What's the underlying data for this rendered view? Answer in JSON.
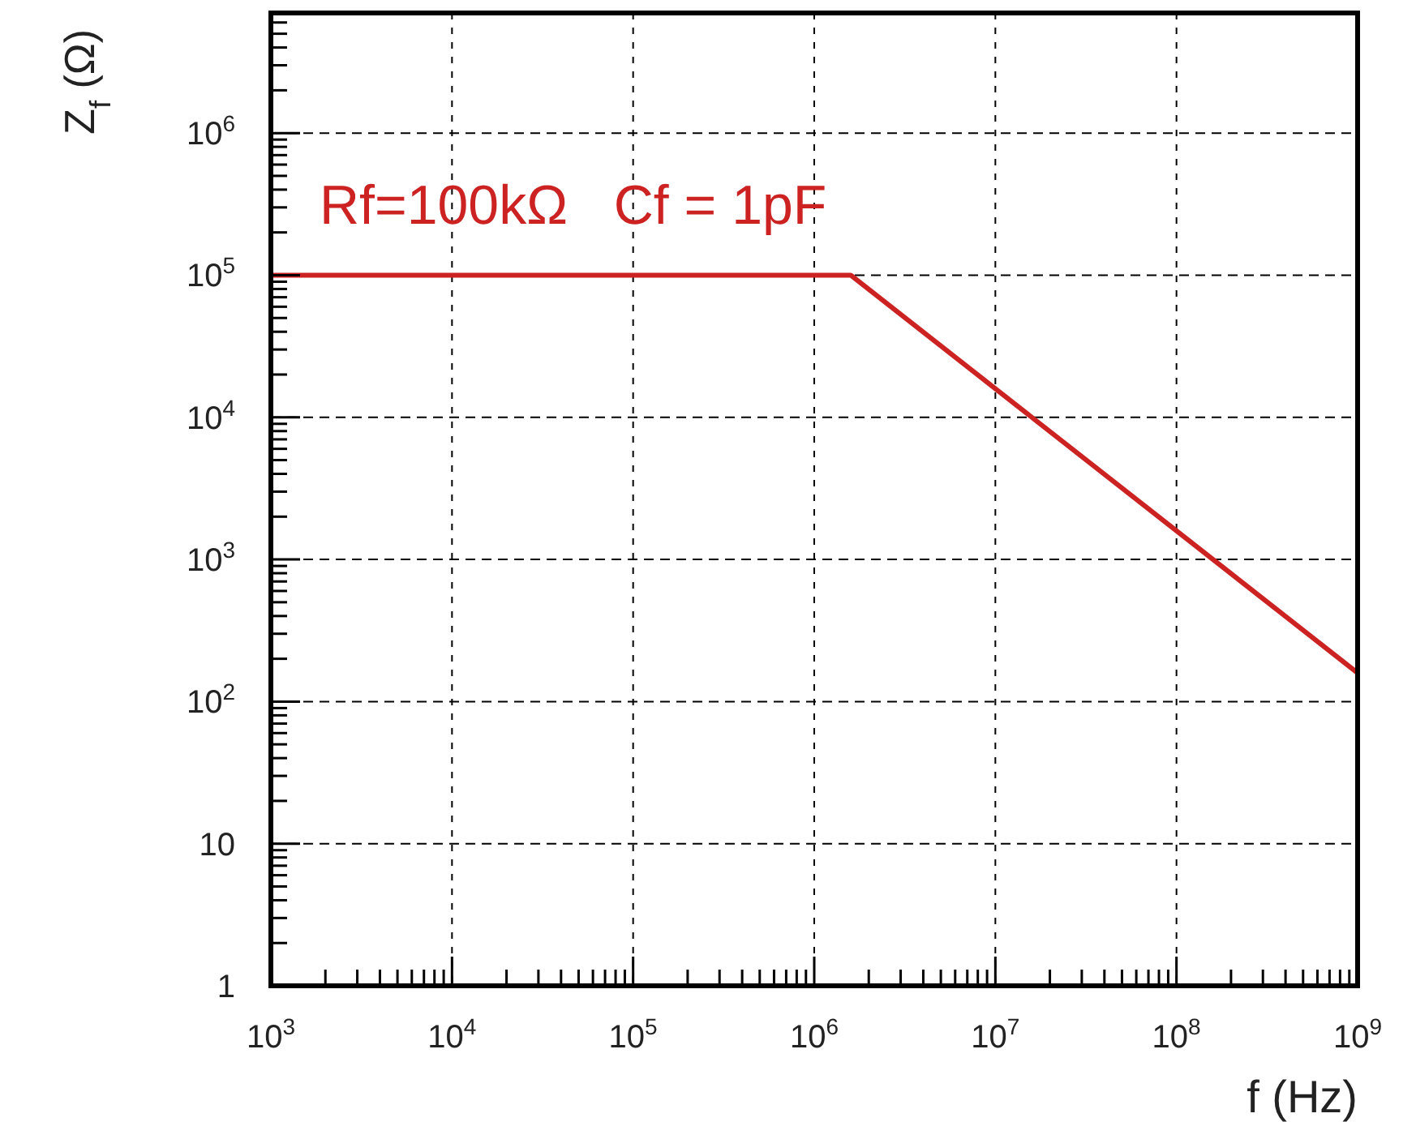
{
  "chart_data": {
    "type": "line",
    "xlabel": "f (Hz)",
    "ylabel": "Z$_{f}$ (Ω)",
    "annotations": [
      "Rf=100kΩ   Cf = 1pF"
    ],
    "log": "xy",
    "grid": true,
    "marker": "none",
    "line_style": "solid",
    "xlim": [
      1000,
      1000000000
    ],
    "ylim": [
      1,
      7000000
    ],
    "xticks": [
      {
        "value": 1000,
        "label": "10$^{3}$"
      },
      {
        "value": 10000,
        "label": "10$^{4}$"
      },
      {
        "value": 100000,
        "label": "10$^{5}$"
      },
      {
        "value": 1000000,
        "label": "10$^{6}$"
      },
      {
        "value": 10000000,
        "label": "10$^{7}$"
      },
      {
        "value": 100000000,
        "label": "10$^{8}$"
      },
      {
        "value": 1000000000,
        "label": "10$^{9}$"
      },
      {
        "value": 2000,
        "label": null
      },
      {
        "value": 3000,
        "label": null
      },
      {
        "value": 4000,
        "label": null
      },
      {
        "value": 5000,
        "label": null
      },
      {
        "value": 6000,
        "label": null
      },
      {
        "value": 7000,
        "label": null
      },
      {
        "value": 8000,
        "label": null
      },
      {
        "value": 9000,
        "label": null
      },
      {
        "value": 20000,
        "label": null
      },
      {
        "value": 30000,
        "label": null
      },
      {
        "value": 40000,
        "label": null
      },
      {
        "value": 50000,
        "label": null
      },
      {
        "value": 60000,
        "label": null
      },
      {
        "value": 70000,
        "label": null
      },
      {
        "value": 80000,
        "label": null
      },
      {
        "value": 90000,
        "label": null
      },
      {
        "value": 200000,
        "label": null
      },
      {
        "value": 300000,
        "label": null
      },
      {
        "value": 400000,
        "label": null
      },
      {
        "value": 500000,
        "label": null
      },
      {
        "value": 600000,
        "label": null
      },
      {
        "value": 700000,
        "label": null
      },
      {
        "value": 800000,
        "label": null
      },
      {
        "value": 900000,
        "label": null
      },
      {
        "value": 2000000,
        "label": null
      },
      {
        "value": 3000000,
        "label": null
      },
      {
        "value": 4000000,
        "label": null
      },
      {
        "value": 5000000,
        "label": null
      },
      {
        "value": 6000000,
        "label": null
      },
      {
        "value": 7000000,
        "label": null
      },
      {
        "value": 8000000,
        "label": null
      },
      {
        "value": 9000000,
        "label": null
      },
      {
        "value": 20000000,
        "label": null
      },
      {
        "value": 30000000,
        "label": null
      },
      {
        "value": 40000000,
        "label": null
      },
      {
        "value": 50000000,
        "label": null
      },
      {
        "value": 60000000,
        "label": null
      },
      {
        "value": 70000000,
        "label": null
      },
      {
        "value": 80000000,
        "label": null
      },
      {
        "value": 90000000,
        "label": null
      },
      {
        "value": 200000000,
        "label": null
      },
      {
        "value": 300000000,
        "label": null
      },
      {
        "value": 400000000,
        "label": null
      },
      {
        "value": 500000000,
        "label": null
      },
      {
        "value": 600000000,
        "label": null
      },
      {
        "value": 700000000,
        "label": null
      },
      {
        "value": 800000000,
        "label": null
      },
      {
        "value": 900000000,
        "label": null
      }
    ],
    "yticks": [
      1,
      10,
      {
        "value": 100,
        "label": "10$^{2}$"
      },
      {
        "value": 1000,
        "label": "10$^{3}$"
      },
      {
        "value": 10000,
        "label": "10$^{4}$"
      },
      {
        "value": 100000,
        "label": "10$^{5}$"
      },
      {
        "value": 1000000,
        "label": "10$^{6}$"
      },
      {
        "value": 2,
        "label": null
      },
      {
        "value": 3,
        "label": null
      },
      {
        "value": 4,
        "label": null
      },
      {
        "value": 5,
        "label": null
      },
      {
        "value": 6,
        "label": null
      },
      {
        "value": 7,
        "label": null
      },
      {
        "value": 8,
        "label": null
      },
      {
        "value": 9,
        "label": null
      },
      {
        "value": 20,
        "label": null
      },
      {
        "value": 30,
        "label": null
      },
      {
        "value": 40,
        "label": null
      },
      {
        "value": 50,
        "label": null
      },
      {
        "value": 60,
        "label": null
      },
      {
        "value": 70,
        "label": null
      },
      {
        "value": 80,
        "label": null
      },
      {
        "value": 90,
        "label": null
      },
      {
        "value": 200,
        "label": null
      },
      {
        "value": 300,
        "label": null
      },
      {
        "value": 400,
        "label": null
      },
      {
        "value": 500,
        "label": null
      },
      {
        "value": 600,
        "label": null
      },
      {
        "value": 700,
        "label": null
      },
      {
        "value": 800,
        "label": null
      },
      {
        "value": 900,
        "label": null
      },
      {
        "value": 2000,
        "label": null
      },
      {
        "value": 3000,
        "label": null
      },
      {
        "value": 4000,
        "label": null
      },
      {
        "value": 5000,
        "label": null
      },
      {
        "value": 6000,
        "label": null
      },
      {
        "value": 7000,
        "label": null
      },
      {
        "value": 8000,
        "label": null
      },
      {
        "value": 9000,
        "label": null
      },
      {
        "value": 20000,
        "label": null
      },
      {
        "value": 30000,
        "label": null
      },
      {
        "value": 40000,
        "label": null
      },
      {
        "value": 50000,
        "label": null
      },
      {
        "value": 60000,
        "label": null
      },
      {
        "value": 70000,
        "label": null
      },
      {
        "value": 80000,
        "label": null
      },
      {
        "value": 90000,
        "label": null
      },
      {
        "value": 200000,
        "label": null
      },
      {
        "value": 300000,
        "label": null
      },
      {
        "value": 400000,
        "label": null
      },
      {
        "value": 500000,
        "label": null
      },
      {
        "value": 600000,
        "label": null
      },
      {
        "value": 700000,
        "label": null
      },
      {
        "value": 800000,
        "label": null
      },
      {
        "value": 900000,
        "label": null
      },
      {
        "value": 2000000,
        "label": null
      },
      {
        "value": 3000000,
        "label": null
      },
      {
        "value": 4000000,
        "label": null
      },
      {
        "value": 5000000,
        "label": null
      },
      {
        "value": 6000000,
        "label": null
      },
      {
        "value": 7000000,
        "label": null
      }
    ],
    "series": [
      {
        "color": "#cc2222",
        "x": [
          1000,
          1590000,
          1000000000
        ],
        "values": [
          100000,
          100000,
          159
        ]
      }
    ]
  }
}
